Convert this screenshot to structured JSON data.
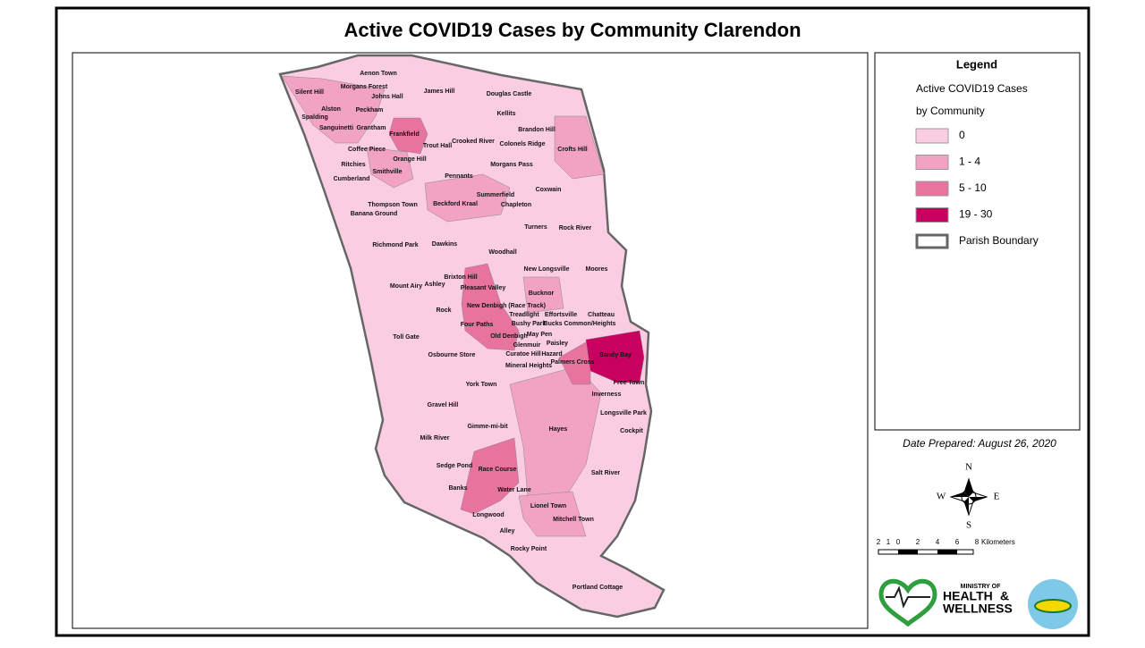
{
  "title": "Active COVID19 Cases by Community Clarendon",
  "legend": {
    "title": "Legend",
    "lines": [
      "Active COVID19 Cases",
      "by Community"
    ],
    "classes": [
      {
        "label": "0",
        "color": "#fbcde3"
      },
      {
        "label": "1 - 4",
        "color": "#f2a2c2"
      },
      {
        "label": "5 - 10",
        "color": "#e8739f"
      },
      {
        "label": "19 - 30",
        "color": "#c8005f"
      }
    ],
    "boundary_label": "Parish Boundary"
  },
  "date": "Date Prepared: August 26, 2020",
  "compass": {
    "n": "N",
    "s": "S",
    "e": "E",
    "w": "W"
  },
  "scale": {
    "ticks": [
      "2",
      "1",
      "0",
      "2",
      "4",
      "6",
      "8"
    ],
    "unit": "Kilometers"
  },
  "logo": {
    "ministry": "MINISTRY OF",
    "health": "HEALTH",
    "amp": "&",
    "wellness": "WELLNESS"
  },
  "communities": [
    "Aenon Town",
    "Silent Hill",
    "Morgans Forest",
    "Johns Hall",
    "James Hill",
    "Douglas Castle",
    "Alston",
    "Peckham",
    "Kellits",
    "Spalding",
    "Sanguinetti",
    "Grantham",
    "Brandon Hill",
    "Frankfield",
    "Crooked River",
    "Colonels Ridge",
    "Trout Hall",
    "Crofts Hill",
    "Coffee Piece",
    "Orange Hill",
    "Ritchies",
    "Morgans Pass",
    "Smithville",
    "Cumberland",
    "Pennants",
    "Coxwain",
    "Summerfield",
    "Beckford Kraal",
    "Chapleton",
    "Thompson Town",
    "Banana Ground",
    "Turners",
    "Rock River",
    "Richmond Park",
    "Dawkins",
    "Woodhall",
    "New Longsville",
    "Moores",
    "Brixton Hill",
    "Mount Airy",
    "Ashley",
    "Pleasant Valley",
    "Bucknor",
    "New Denbigh (Race Track)",
    "Rock",
    "Treadlight",
    "Effortsville",
    "Chatteau",
    "Bushy Park",
    "Bucks Common/Heights",
    "Four Paths",
    "May Pen",
    "Old Denbigh",
    "Toll Gate",
    "Glenmuir",
    "Paisley",
    "Sandy Bay",
    "Curatoe Hill",
    "Hazard",
    "Osbourne Store",
    "Palmers Cross",
    "Mineral Heights",
    "Free Town",
    "York Town",
    "Inverness",
    "Gravel Hill",
    "Longsville Park",
    "Hayes",
    "Gimme-mi-bit",
    "Cockpit",
    "Milk River",
    "Salt River",
    "Sedge Pond",
    "Race Course",
    "Banks",
    "Water Lane",
    "Lionel Town",
    "Longwood",
    "Mitchell Town",
    "Alley",
    "Rocky Point",
    "Portland Cottage"
  ]
}
